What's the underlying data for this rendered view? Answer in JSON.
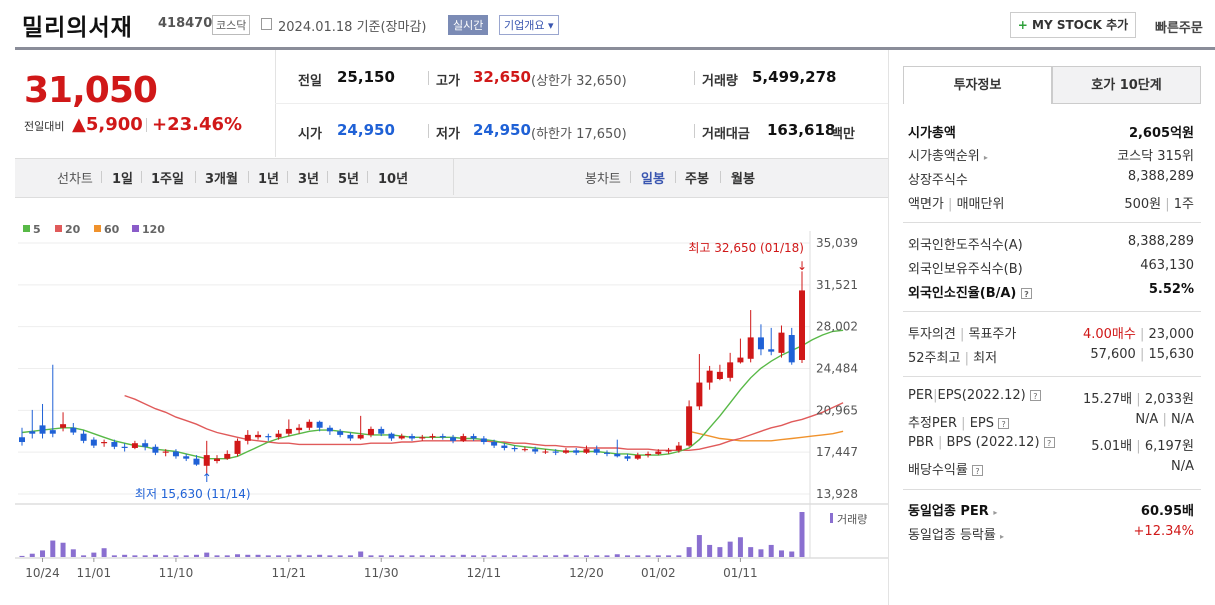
{
  "header": {
    "name": "밀리의서재",
    "code": "418470",
    "market": "코스닥",
    "date": "2024.01.18  기준(장마감)",
    "realtime": "실시간",
    "corp_overview": "기업개요 ▾",
    "mystock": "MY STOCK 추가",
    "quick_order": "빠른주문"
  },
  "price": {
    "current": "31,050",
    "change_label": "전일대비",
    "change": "▲5,900",
    "change_pct": "+23.46%"
  },
  "stats": {
    "prev_label": "전일",
    "prev": "25,150",
    "high_label": "고가",
    "high": "32,650",
    "high_limit": "(상한가 32,650)",
    "volume_label": "거래량",
    "volume": "5,499,278",
    "open_label": "시가",
    "open": "24,950",
    "low_label": "저가",
    "low": "24,950",
    "low_limit": "(하한가 17,650)",
    "amount_label": "거래대금",
    "amount": "163,618",
    "amount_unit": "백만"
  },
  "toolbar": {
    "line_label": "선차트",
    "periods": [
      "1일",
      "1주일",
      "3개월",
      "1년",
      "3년",
      "5년",
      "10년"
    ],
    "candle_label": "봉차트",
    "candle_periods": [
      "일봉",
      "주봉",
      "월봉"
    ]
  },
  "colors": {
    "up": "#d01818",
    "down": "#1f61d6",
    "ma5": "#58b947",
    "ma20": "#e05a5a",
    "ma60": "#f0922c",
    "ma120": "#8a5cc9",
    "volume": "#8a6fd0"
  },
  "chart_data": {
    "type": "candlestick",
    "legend": [
      "5",
      "20",
      "60",
      "120"
    ],
    "y_ticks": [
      "35,039",
      "31,521",
      "28,002",
      "24,484",
      "20,965",
      "17,447",
      "13,928"
    ],
    "ylim": [
      13928,
      35039
    ],
    "x_ticks": [
      "10/24",
      "11/01",
      "11/10",
      "11/21",
      "11/30",
      "12/11",
      "12/20",
      "01/02",
      "01/11"
    ],
    "max_annotation": "최고 32,650 (01/18)",
    "min_annotation": "최저 15,630 (11/14)",
    "volume_label": "거래량",
    "candles": [
      [
        18700,
        18300,
        19500,
        18000
      ],
      [
        19200,
        19000,
        21000,
        18600
      ],
      [
        19700,
        19000,
        21500,
        18600
      ],
      [
        19300,
        19000,
        24800,
        18700
      ],
      [
        19500,
        19800,
        20800,
        19200
      ],
      [
        19500,
        19100,
        19900,
        18900
      ],
      [
        19000,
        18400,
        19300,
        18200
      ],
      [
        18500,
        18000,
        18700,
        17800
      ],
      [
        18200,
        18300,
        18500,
        17900
      ],
      [
        18300,
        17900,
        18500,
        17700
      ],
      [
        17900,
        17800,
        18200,
        17500
      ],
      [
        17800,
        18200,
        18400,
        17700
      ],
      [
        18200,
        17900,
        18500,
        17600
      ],
      [
        17900,
        17400,
        18100,
        17200
      ],
      [
        17400,
        17500,
        17700,
        17100
      ],
      [
        17500,
        17100,
        17700,
        16900
      ],
      [
        17100,
        16900,
        17300,
        16700
      ],
      [
        16900,
        16400,
        17200,
        16300
      ],
      [
        16300,
        17200,
        18400,
        15630
      ],
      [
        16700,
        16900,
        17200,
        16500
      ],
      [
        16900,
        17300,
        17600,
        16800
      ],
      [
        17300,
        18400,
        18600,
        17100
      ],
      [
        18400,
        18900,
        19300,
        18100
      ],
      [
        18700,
        18900,
        19200,
        18500
      ],
      [
        18800,
        18700,
        19000,
        18400
      ],
      [
        18700,
        19000,
        19300,
        18500
      ],
      [
        19000,
        19400,
        20200,
        18800
      ],
      [
        19300,
        19500,
        19800,
        19000
      ],
      [
        19500,
        20000,
        20200,
        19300
      ],
      [
        20000,
        19500,
        20100,
        19200
      ],
      [
        19500,
        19200,
        19700,
        18900
      ],
      [
        19200,
        18900,
        19400,
        18700
      ],
      [
        18900,
        18600,
        19100,
        18400
      ],
      [
        18600,
        18900,
        20500,
        18500
      ],
      [
        18900,
        19400,
        19600,
        18700
      ],
      [
        19400,
        19000,
        19600,
        18800
      ],
      [
        19000,
        18600,
        19100,
        18400
      ],
      [
        18600,
        18800,
        19000,
        18500
      ],
      [
        18800,
        18600,
        19000,
        18400
      ],
      [
        18600,
        18700,
        18900,
        18400
      ],
      [
        18700,
        18800,
        19000,
        18500
      ],
      [
        18800,
        18700,
        19000,
        18500
      ],
      [
        18700,
        18400,
        18900,
        18200
      ],
      [
        18400,
        18800,
        19000,
        18300
      ],
      [
        18800,
        18600,
        19000,
        18400
      ],
      [
        18600,
        18300,
        18800,
        18100
      ],
      [
        18300,
        18000,
        18500,
        17800
      ],
      [
        18000,
        17800,
        18200,
        17600
      ],
      [
        17800,
        17700,
        18000,
        17500
      ],
      [
        17700,
        17700,
        17900,
        17500
      ],
      [
        17700,
        17500,
        17900,
        17300
      ],
      [
        17500,
        17500,
        17700,
        17300
      ],
      [
        17500,
        17400,
        17700,
        17200
      ],
      [
        17400,
        17600,
        17800,
        17300
      ],
      [
        17600,
        17400,
        17800,
        17200
      ],
      [
        17400,
        17700,
        18000,
        17300
      ],
      [
        17700,
        17400,
        18000,
        17200
      ],
      [
        17400,
        17300,
        17600,
        17100
      ],
      [
        17300,
        17100,
        18500,
        17000
      ],
      [
        17100,
        16900,
        17300,
        16700
      ],
      [
        16900,
        17200,
        17400,
        16800
      ],
      [
        17200,
        17300,
        17500,
        17000
      ],
      [
        17300,
        17500,
        17700,
        17200
      ],
      [
        17500,
        17600,
        17800,
        17300
      ],
      [
        17600,
        18000,
        18300,
        17400
      ],
      [
        18000,
        21300,
        21800,
        17900
      ],
      [
        21300,
        23300,
        25700,
        21000
      ],
      [
        23300,
        24300,
        24700,
        22700
      ],
      [
        23600,
        24200,
        24800,
        23500
      ],
      [
        23700,
        25000,
        25800,
        23400
      ],
      [
        25000,
        25400,
        27000,
        24900
      ],
      [
        25300,
        27100,
        29400,
        25000
      ],
      [
        27100,
        26100,
        28200,
        25600
      ],
      [
        26100,
        25900,
        27900,
        25600
      ],
      [
        25800,
        27500,
        28100,
        25400
      ],
      [
        27300,
        25000,
        27900,
        24800
      ],
      [
        25200,
        31050,
        32650,
        24950
      ]
    ],
    "ma5": [
      19100,
      19200,
      19300,
      19400,
      19500,
      19500,
      19300,
      19000,
      18700,
      18400,
      18200,
      18000,
      17900,
      17700,
      17600,
      17500,
      17300,
      17100,
      16900,
      16900,
      16900,
      17100,
      17500,
      17900,
      18300,
      18600,
      18800,
      19000,
      19200,
      19300,
      19300,
      19200,
      19100,
      19000,
      18900,
      18900,
      18900,
      18800,
      18700,
      18700,
      18700,
      18700,
      18700,
      18600,
      18600,
      18500,
      18400,
      18200,
      18000,
      17900,
      17800,
      17700,
      17600,
      17500,
      17500,
      17500,
      17500,
      17400,
      17300,
      17300,
      17200,
      17200,
      17200,
      17300,
      17500,
      17800,
      18500,
      19500,
      20500,
      21600,
      22700,
      23700,
      24500,
      25100,
      25600,
      26000,
      26400,
      26900,
      27300,
      27600,
      27700
    ],
    "ma20": [
      null,
      null,
      null,
      null,
      null,
      null,
      null,
      null,
      null,
      null,
      22200,
      21900,
      21500,
      21100,
      20800,
      20400,
      20100,
      19800,
      19400,
      19100,
      18900,
      18700,
      18500,
      18400,
      18300,
      18200,
      18200,
      18100,
      18100,
      18100,
      18100,
      18100,
      18100,
      18100,
      18200,
      18200,
      18200,
      18300,
      18300,
      18400,
      18400,
      18400,
      18400,
      18400,
      18400,
      18400,
      18300,
      18300,
      18200,
      18200,
      18100,
      18000,
      18000,
      17900,
      17900,
      17800,
      17800,
      17800,
      17800,
      17700,
      17700,
      17700,
      17600,
      17600,
      17600,
      17600,
      17700,
      17900,
      18100,
      18400,
      18600,
      18900,
      19200,
      19500,
      19700,
      20000,
      20200,
      20500,
      20800,
      21200,
      21600
    ],
    "ma60": [
      null,
      null,
      null,
      null,
      null,
      null,
      null,
      null,
      null,
      null,
      null,
      null,
      null,
      null,
      null,
      null,
      null,
      null,
      null,
      null,
      null,
      null,
      null,
      null,
      null,
      null,
      null,
      null,
      null,
      null,
      null,
      null,
      null,
      null,
      null,
      null,
      null,
      null,
      null,
      null,
      null,
      null,
      null,
      null,
      null,
      null,
      null,
      null,
      null,
      null,
      null,
      null,
      null,
      null,
      null,
      null,
      null,
      null,
      null,
      null,
      null,
      null,
      null,
      null,
      null,
      19200,
      19000,
      18800,
      18600,
      18500,
      18400,
      18400,
      18400,
      18400,
      18500,
      18600,
      18700,
      18800,
      18900,
      19000,
      19200
    ],
    "volume": [
      2,
      6,
      12,
      30,
      26,
      14,
      3,
      8,
      16,
      3,
      4,
      3,
      3,
      4,
      3,
      3,
      3,
      4,
      8,
      3,
      3,
      5,
      4,
      4,
      3,
      3,
      3,
      4,
      3,
      4,
      3,
      3,
      3,
      10,
      3,
      3,
      3,
      3,
      3,
      3,
      3,
      3,
      3,
      4,
      3,
      3,
      3,
      3,
      3,
      3,
      3,
      3,
      3,
      4,
      3,
      3,
      3,
      3,
      5,
      3,
      3,
      3,
      3,
      3,
      3,
      18,
      40,
      22,
      18,
      28,
      36,
      18,
      14,
      22,
      12,
      10,
      82
    ]
  },
  "invest_info": {
    "tab1": "투자정보",
    "tab2": "호가 10단계",
    "market_cap_label": "시가총액",
    "market_cap": "2,605억원",
    "rank_label": "시가총액순위",
    "rank": "코스닥 315위",
    "shares_label": "상장주식수",
    "shares": "8,388,289",
    "par_label": "액면가",
    "unit_label": "매매단위",
    "par": "500원",
    "unit": "1주",
    "foreign_limit_label": "외국인한도주식수(A)",
    "foreign_limit": "8,388,289",
    "foreign_hold_label": "외국인보유주식수(B)",
    "foreign_hold": "463,130",
    "foreign_ratio_label": "외국인소진율(B/A)",
    "foreign_ratio": "5.52%",
    "opinion_label": "투자의견",
    "target_label": "목표주가",
    "opinion": "4.00매수",
    "target": "23,000",
    "w52_label": "52주최고",
    "w52_low_label": "최저",
    "w52_high": "57,600",
    "w52_low": "15,630",
    "per_label": "PER",
    "eps_label": "EPS(2022.12)",
    "per": "15.27배",
    "eps": "2,033원",
    "eper_label": "추정PER",
    "eeps_label": "EPS",
    "eper": "N/A",
    "eeps": "N/A",
    "pbr_label": "PBR",
    "bps_label": "BPS (2022.12)",
    "pbr": "5.01배",
    "bps": "6,197원",
    "div_label": "배당수익률",
    "div": "N/A",
    "ind_per_label": "동일업종 PER",
    "ind_per": "60.95배",
    "ind_chg_label": "동일업종 등락률",
    "ind_chg": "+12.34%"
  }
}
